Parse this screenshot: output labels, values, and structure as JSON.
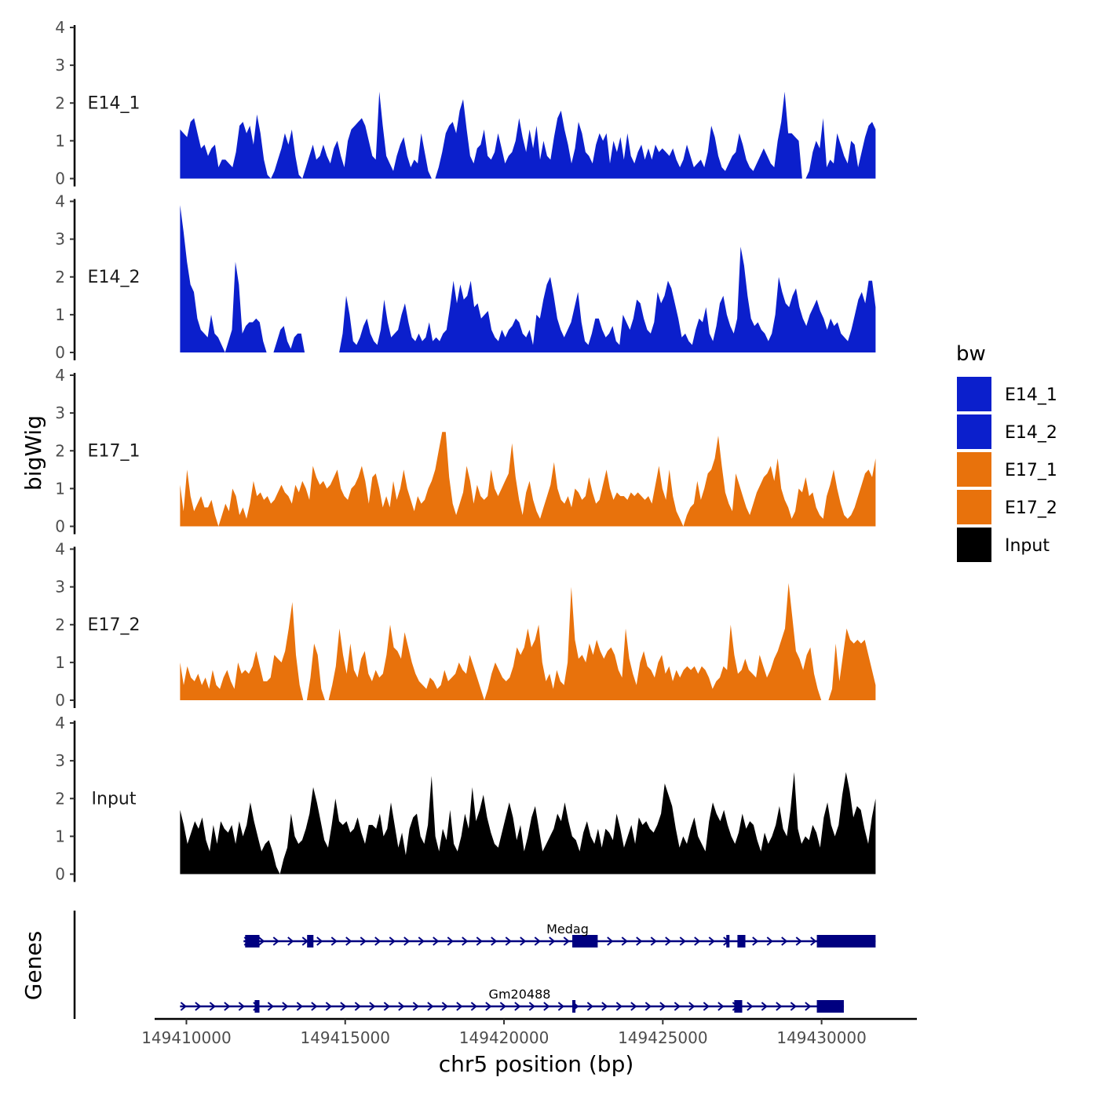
{
  "chart_data": {
    "type": "area",
    "ylabel": "bigWig",
    "xlabel": "chr5 position (bp)",
    "xlim": [
      149409000,
      149433000
    ],
    "x_ticks": [
      149410000,
      149415000,
      149420000,
      149425000,
      149430000
    ],
    "x_tick_labels": [
      "149410000",
      "149415000",
      "149420000",
      "149425000",
      "149430000"
    ],
    "ylim": [
      0,
      4
    ],
    "y_ticks": [
      0,
      1,
      2,
      3,
      4
    ],
    "y_tick_labels": [
      "0",
      "1",
      "2",
      "3",
      "4"
    ],
    "data_range": [
      149409800,
      149431700
    ],
    "legend_title": "bw",
    "legend": [
      {
        "label": "E14_1",
        "color": "#0B1FCC"
      },
      {
        "label": "E14_2",
        "color": "#0B1FCC"
      },
      {
        "label": "E17_1",
        "color": "#E8720C"
      },
      {
        "label": "E17_2",
        "color": "#E8720C"
      },
      {
        "label": "Input",
        "color": "#000000"
      }
    ],
    "series": [
      {
        "name": "E14_1",
        "color": "#0B1FCC",
        "values": [
          1.3,
          1.2,
          1.1,
          1.5,
          1.6,
          1.2,
          0.8,
          0.9,
          0.6,
          0.8,
          0.9,
          0.3,
          0.5,
          0.5,
          0.4,
          0.3,
          0.7,
          1.4,
          1.5,
          1.2,
          1.4,
          0.9,
          1.7,
          1.2,
          0.5,
          0.1,
          0,
          0.2,
          0.5,
          0.8,
          1.2,
          0.9,
          1.3,
          0.6,
          0.1,
          0,
          0.3,
          0.6,
          0.9,
          0.5,
          0.6,
          0.9,
          0.6,
          0.4,
          0.8,
          1.0,
          0.6,
          0.3,
          1.0,
          1.3,
          1.4,
          1.5,
          1.6,
          1.4,
          1.0,
          0.6,
          0.5,
          2.3,
          1.4,
          0.6,
          0.4,
          0.2,
          0.6,
          0.9,
          1.1,
          0.6,
          0.3,
          0.5,
          0.4,
          1.2,
          0.7,
          0.2,
          0,
          0,
          0.3,
          0.7,
          1.2,
          1.4,
          1.5,
          1.2,
          1.8,
          2.1,
          1.3,
          0.6,
          0.4,
          0.8,
          0.9,
          1.3,
          0.6,
          0.5,
          0.7,
          1.2,
          0.8,
          0.4,
          0.6,
          0.7,
          1.0,
          1.6,
          1.1,
          0.7,
          1.3,
          0.8,
          1.4,
          0.5,
          1.0,
          0.6,
          0.5,
          1.1,
          1.6,
          1.8,
          1.3,
          0.9,
          0.4,
          0.8,
          1.5,
          1.2,
          0.7,
          0.6,
          0.4,
          0.9,
          1.2,
          1.0,
          1.2,
          0.4,
          1.0,
          0.7,
          1.1,
          0.5,
          1.2,
          0.6,
          0.4,
          0.7,
          0.9,
          0.5,
          0.8,
          0.5,
          0.9,
          0.7,
          0.8,
          0.7,
          0.6,
          0.8,
          0.5,
          0.3,
          0.5,
          0.9,
          0.6,
          0.3,
          0.4,
          0.5,
          0.3,
          0.7,
          1.4,
          1.1,
          0.6,
          0.3,
          0.2,
          0.4,
          0.6,
          0.7,
          1.2,
          0.9,
          0.5,
          0.3,
          0.2,
          0.4,
          0.6,
          0.8,
          0.6,
          0.4,
          0.3,
          1.0,
          1.5,
          2.3,
          1.2,
          1.2,
          1.1,
          1.0,
          0,
          0,
          0.2,
          0.7,
          1.0,
          0.8,
          1.6,
          0.3,
          0.5,
          0.4,
          1.2,
          0.9,
          0.6,
          0.4,
          1.0,
          0.9,
          0.3,
          0.7,
          1.1,
          1.4,
          1.5,
          1.3
        ]
      },
      {
        "name": "E14_2",
        "color": "#0B1FCC",
        "values": [
          3.9,
          3.2,
          2.4,
          1.8,
          1.6,
          0.9,
          0.6,
          0.5,
          0.4,
          1.0,
          0.5,
          0.4,
          0.2,
          0,
          0.3,
          0.6,
          2.4,
          1.8,
          0.5,
          0.7,
          0.8,
          0.8,
          0.9,
          0.8,
          0.3,
          0,
          0,
          0,
          0.3,
          0.6,
          0.7,
          0.3,
          0.1,
          0.4,
          0.5,
          0.5,
          0,
          0,
          0,
          0,
          0,
          0,
          0,
          0,
          0,
          0,
          0,
          0.5,
          1.5,
          1.0,
          0.3,
          0.2,
          0.4,
          0.7,
          0.9,
          0.5,
          0.3,
          0.2,
          0.6,
          1.4,
          0.8,
          0.4,
          0.5,
          0.6,
          1.0,
          1.3,
          0.8,
          0.4,
          0.3,
          0.5,
          0.3,
          0.4,
          0.8,
          0.3,
          0.4,
          0.3,
          0.5,
          0.6,
          1.2,
          1.9,
          1.3,
          1.8,
          1.4,
          1.5,
          1.9,
          1.2,
          1.3,
          0.9,
          1.0,
          1.1,
          0.6,
          0.4,
          0.3,
          0.6,
          0.4,
          0.6,
          0.7,
          0.9,
          0.8,
          0.5,
          0.4,
          0.6,
          0.2,
          1.0,
          0.9,
          1.4,
          1.8,
          2.0,
          1.5,
          0.9,
          0.6,
          0.4,
          0.6,
          0.8,
          1.2,
          1.6,
          0.8,
          0.3,
          0.2,
          0.5,
          0.9,
          0.9,
          0.6,
          0.4,
          0.5,
          0.7,
          0.3,
          0.2,
          1.0,
          0.8,
          0.6,
          0.9,
          1.4,
          1.3,
          0.9,
          0.6,
          0.5,
          0.8,
          1.6,
          1.3,
          1.5,
          1.9,
          1.7,
          1.3,
          0.9,
          0.4,
          0.5,
          0.3,
          0.2,
          0.6,
          0.9,
          0.8,
          1.2,
          0.5,
          0.3,
          0.7,
          1.3,
          1.5,
          1.0,
          0.7,
          0.5,
          0.9,
          2.8,
          2.3,
          1.5,
          0.9,
          0.7,
          0.8,
          0.6,
          0.5,
          0.3,
          0.5,
          1.0,
          2.0,
          1.6,
          1.3,
          1.2,
          1.5,
          1.7,
          1.2,
          0.9,
          0.7,
          1.0,
          1.2,
          1.4,
          1.1,
          0.9,
          0.6,
          0.9,
          0.7,
          0.8,
          0.5,
          0.4,
          0.3,
          0.6,
          1.0,
          1.4,
          1.6,
          1.3,
          1.9,
          1.9,
          1.2
        ]
      },
      {
        "name": "E17_1",
        "color": "#E8720C",
        "values": [
          1.1,
          0.4,
          1.5,
          0.8,
          0.4,
          0.6,
          0.8,
          0.5,
          0.5,
          0.7,
          0.3,
          0,
          0.3,
          0.6,
          0.4,
          1.0,
          0.8,
          0.3,
          0.5,
          0.2,
          0.6,
          1.2,
          0.8,
          0.9,
          0.7,
          0.8,
          0.6,
          0.7,
          0.9,
          1.1,
          0.9,
          0.8,
          0.6,
          1.1,
          0.9,
          1.2,
          1.0,
          0.7,
          1.6,
          1.3,
          1.1,
          1.2,
          1.0,
          1.1,
          1.3,
          1.5,
          1.0,
          0.8,
          0.7,
          1.0,
          1.1,
          1.3,
          1.6,
          1.2,
          0.6,
          1.3,
          1.4,
          1.0,
          0.5,
          0.8,
          0.5,
          1.2,
          0.7,
          1.0,
          1.5,
          1.0,
          0.7,
          0.4,
          0.8,
          0.6,
          0.7,
          1.0,
          1.2,
          1.5,
          2.0,
          2.5,
          2.5,
          1.3,
          0.6,
          0.3,
          0.6,
          0.9,
          1.6,
          1.2,
          0.6,
          1.1,
          0.8,
          0.7,
          0.8,
          1.5,
          1.0,
          0.8,
          1.0,
          1.2,
          1.4,
          2.2,
          1.3,
          0.7,
          0.3,
          0.9,
          1.2,
          0.7,
          0.4,
          0.2,
          0.5,
          0.8,
          1.1,
          1.7,
          1.0,
          0.7,
          0.6,
          0.8,
          0.5,
          1.0,
          0.9,
          0.7,
          0.8,
          1.3,
          0.9,
          0.6,
          0.7,
          1.1,
          1.5,
          1.0,
          0.7,
          0.9,
          0.8,
          0.8,
          0.7,
          0.9,
          0.8,
          0.9,
          0.8,
          0.7,
          0.8,
          0.6,
          1.1,
          1.6,
          1.0,
          0.7,
          1.5,
          0.8,
          0.4,
          0.2,
          0,
          0.3,
          0.5,
          0.6,
          1.2,
          0.7,
          1.0,
          1.4,
          1.5,
          1.8,
          2.4,
          1.6,
          0.9,
          0.6,
          0.4,
          1.4,
          1.1,
          0.8,
          0.5,
          0.3,
          0.6,
          0.9,
          1.1,
          1.3,
          1.4,
          1.6,
          1.2,
          1.8,
          1.0,
          0.7,
          0.5,
          0.2,
          0.4,
          1.0,
          0.9,
          1.3,
          0.8,
          0.9,
          0.5,
          0.3,
          0.2,
          0.8,
          1.1,
          1.5,
          1.0,
          0.6,
          0.3,
          0.2,
          0.3,
          0.5,
          0.8,
          1.1,
          1.4,
          1.5,
          1.3,
          1.8
        ]
      },
      {
        "name": "E17_2",
        "color": "#E8720C",
        "values": [
          1.0,
          0.4,
          0.9,
          0.6,
          0.5,
          0.7,
          0.4,
          0.6,
          0.3,
          0.8,
          0.4,
          0.3,
          0.6,
          0.8,
          0.5,
          0.3,
          1.0,
          0.7,
          0.8,
          0.7,
          0.9,
          1.3,
          0.9,
          0.5,
          0.5,
          0.6,
          1.2,
          1.1,
          1.0,
          1.3,
          1.9,
          2.6,
          1.2,
          0.4,
          0,
          0,
          0.6,
          1.5,
          1.2,
          0.3,
          0,
          0,
          0.4,
          0.9,
          1.9,
          1.2,
          0.7,
          1.5,
          0.8,
          0.6,
          1.1,
          1.3,
          0.7,
          0.5,
          0.8,
          0.6,
          0.7,
          1.2,
          2.0,
          1.4,
          1.3,
          1.1,
          1.8,
          1.4,
          1.0,
          0.7,
          0.5,
          0.4,
          0.3,
          0.6,
          0.5,
          0.3,
          0.4,
          0.8,
          0.5,
          0.6,
          0.7,
          1.0,
          0.8,
          0.7,
          1.2,
          0.9,
          0.6,
          0.3,
          0,
          0.3,
          0.7,
          1.0,
          0.8,
          0.6,
          0.5,
          0.6,
          0.9,
          1.4,
          1.2,
          1.4,
          1.9,
          1.4,
          1.6,
          2.0,
          1.0,
          0.5,
          0.7,
          0.3,
          0.8,
          0.5,
          0.4,
          1.0,
          3.0,
          1.6,
          1.1,
          1.2,
          1.0,
          1.5,
          1.2,
          1.6,
          1.3,
          1.1,
          1.3,
          1.4,
          1.2,
          0.8,
          0.6,
          1.9,
          1.1,
          0.7,
          0.4,
          1.0,
          1.3,
          0.9,
          0.8,
          0.6,
          1.0,
          1.2,
          0.7,
          0.9,
          0.5,
          0.8,
          0.6,
          0.8,
          0.9,
          0.8,
          0.9,
          0.7,
          0.9,
          0.8,
          0.6,
          0.3,
          0.5,
          0.6,
          0.9,
          0.8,
          2.0,
          1.2,
          0.7,
          0.8,
          1.1,
          0.8,
          0.7,
          0.6,
          1.2,
          0.9,
          0.6,
          0.8,
          1.1,
          1.3,
          1.6,
          1.9,
          3.1,
          2.2,
          1.3,
          1.1,
          0.8,
          1.2,
          1.4,
          0.7,
          0.3,
          0,
          0,
          0,
          0.3,
          1.5,
          0.5,
          1.2,
          1.9,
          1.6,
          1.5,
          1.6,
          1.5,
          1.6,
          1.2,
          0.8,
          0.4
        ]
      },
      {
        "name": "Input",
        "color": "#000000",
        "values": [
          1.7,
          1.3,
          0.8,
          1.1,
          1.4,
          1.2,
          1.5,
          0.9,
          0.6,
          1.3,
          0.8,
          1.4,
          1.2,
          1.1,
          1.3,
          0.8,
          1.4,
          1.0,
          1.3,
          1.9,
          1.4,
          1.0,
          0.6,
          0.8,
          0.9,
          0.6,
          0.2,
          0,
          0.4,
          0.7,
          1.6,
          1.0,
          0.8,
          0.9,
          1.2,
          1.6,
          2.3,
          1.9,
          1.4,
          0.9,
          0.7,
          1.3,
          2.0,
          1.4,
          1.3,
          1.4,
          1.1,
          1.2,
          1.5,
          1.1,
          0.8,
          1.3,
          1.3,
          1.2,
          1.6,
          1.0,
          1.2,
          1.9,
          1.3,
          0.7,
          1.1,
          0.5,
          1.2,
          1.5,
          1.6,
          1.0,
          0.8,
          1.3,
          2.6,
          1.0,
          0.6,
          1.2,
          0.9,
          1.7,
          0.8,
          0.6,
          1.0,
          1.6,
          1.2,
          2.3,
          1.4,
          1.7,
          2.1,
          1.5,
          1.1,
          0.8,
          0.7,
          1.1,
          1.5,
          1.9,
          1.5,
          0.9,
          1.3,
          0.6,
          1.0,
          1.5,
          1.8,
          1.2,
          0.6,
          0.8,
          1.0,
          1.2,
          1.6,
          1.4,
          1.9,
          1.4,
          1.0,
          0.9,
          0.6,
          1.1,
          1.4,
          1.0,
          0.8,
          1.2,
          0.7,
          1.2,
          1.1,
          0.9,
          1.6,
          1.2,
          0.7,
          1.0,
          1.3,
          0.8,
          1.5,
          1.3,
          1.4,
          1.2,
          1.1,
          1.3,
          1.6,
          2.4,
          2.1,
          1.8,
          1.2,
          0.7,
          1.0,
          0.8,
          1.2,
          1.5,
          1.0,
          0.8,
          0.6,
          1.4,
          1.9,
          1.6,
          1.4,
          1.7,
          1.3,
          1.0,
          0.8,
          1.1,
          1.6,
          1.2,
          1.4,
          1.3,
          0.9,
          0.6,
          1.1,
          0.8,
          1.0,
          1.3,
          1.8,
          1.2,
          1.0,
          1.7,
          2.7,
          1.2,
          0.8,
          1.0,
          0.9,
          1.3,
          1.1,
          0.7,
          1.5,
          1.9,
          1.3,
          1.0,
          1.3,
          2.1,
          2.7,
          2.2,
          1.5,
          1.8,
          1.7,
          1.2,
          0.8,
          1.5,
          2.0
        ]
      }
    ],
    "genes_track_label": "Genes",
    "genes": [
      {
        "name": "Medag",
        "start": 149411800,
        "end": 149431700,
        "strand": "+",
        "color": "#000080",
        "exons": [
          [
            149411850,
            149412300
          ],
          [
            149413800,
            149414000
          ],
          [
            149422150,
            149422950
          ],
          [
            149427000,
            149427100
          ],
          [
            149427350,
            149427600
          ],
          [
            149429850,
            149431700
          ]
        ]
      },
      {
        "name": "Gm20488",
        "start": 149409800,
        "end": 149430700,
        "strand": "+",
        "color": "#000080",
        "exons": [
          [
            149412150,
            149412300
          ],
          [
            149422150,
            149422250
          ],
          [
            149427250,
            149427500
          ],
          [
            149429850,
            149430700
          ]
        ]
      }
    ]
  }
}
